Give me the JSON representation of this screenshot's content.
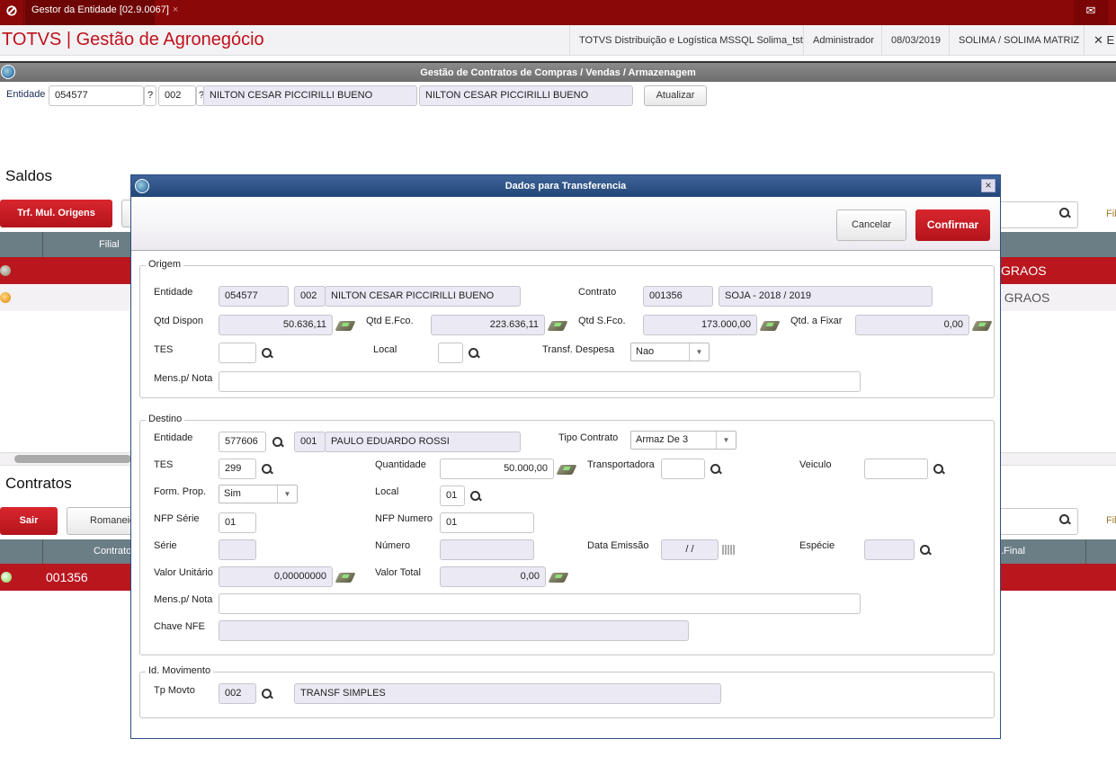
{
  "topbar": {
    "tab_label": "Gestor da Entidade [02.9.0067]",
    "tab_close": "×",
    "logo": "totvs-logo",
    "mail_icon": "mail-icon"
  },
  "header": {
    "app_title": "TOTVS | Gestão de Agronegócio",
    "environment": "TOTVS Distribuição e Logística MSSQL Solima_tst",
    "user": "Administrador",
    "date": "08/03/2019",
    "company": "SOLIMA / SOLIMA MATRIZ",
    "exit_label": "✕ E"
  },
  "window": {
    "title": "Gestão de Contratos de Compras / Vendas / Armazenagem"
  },
  "entity": {
    "label": "Entidade",
    "code": "054577",
    "q1": "?",
    "store": "002",
    "q2": "?",
    "name": "NILTON CESAR PICCIRILLI BUENO",
    "name2": "NILTON CESAR PICCIRILLI BUENO",
    "refresh": "Atualizar"
  },
  "saldos": {
    "title": "Saldos",
    "button": "Trf. Mul. Origens",
    "col_filial": "Filial",
    "rows": [
      {
        "text": "GRAOS"
      },
      {
        "text": "I GRAOS"
      }
    ],
    "filter": "Filt"
  },
  "contratos": {
    "title": "Contratos",
    "exit": "Sair",
    "romaneio": "Romaneio",
    "col_contrato": "Contrato",
    "col_final": ".Final",
    "rows": [
      {
        "contrato": "001356"
      }
    ],
    "filter": "Filt"
  },
  "dialog": {
    "title": "Dados para Transferencia",
    "close": "×",
    "cancel": "Cancelar",
    "confirm": "Confirmar",
    "origem": {
      "legend": "Origem",
      "entidade_label": "Entidade",
      "entidade": "054577",
      "loja": "002",
      "nome": "NILTON CESAR PICCIRILLI BUENO",
      "contrato_label": "Contrato",
      "contrato": "001356",
      "contrato_desc": "SOJA  - 2018 / 2019",
      "qtd_dispon_label": "Qtd Dispon",
      "qtd_dispon": "50.636,11",
      "qtd_efco_label": "Qtd E.Fco.",
      "qtd_efco": "223.636,11",
      "qtd_sfco_label": "Qtd S.Fco.",
      "qtd_sfco": "173.000,00",
      "qtd_fixar_label": "Qtd. a Fixar",
      "qtd_fixar": "0,00",
      "tes_label": "TES",
      "tes": "",
      "local_label": "Local",
      "local": "",
      "transf_label": "Transf. Despesa",
      "transf": "Nao",
      "mens_label": "Mens.p/ Nota",
      "mens": ""
    },
    "destino": {
      "legend": "Destino",
      "entidade_label": "Entidade",
      "entidade": "577606",
      "loja": "001",
      "nome": "PAULO EDUARDO ROSSI",
      "tipo_label": "Tipo Contrato",
      "tipo": "Armaz De 3",
      "tes_label": "TES",
      "tes": "299",
      "qtd_label": "Quantidade",
      "qtd": "50.000,00",
      "transp_label": "Transportadora",
      "transp": "",
      "veic_label": "Veiculo",
      "veic": "",
      "form_label": "Form. Prop.",
      "form": "Sim",
      "local_label": "Local",
      "local": "01",
      "nfps_label": "NFP Série",
      "nfps": "01",
      "nfpn_label": "NFP Numero",
      "nfpn": "01",
      "serie_label": "Série",
      "serie": "",
      "numero_label": "Número",
      "numero": "",
      "data_label": "Data Emissão",
      "data": " /  /",
      "especie_label": "Espécie",
      "especie": "",
      "vu_label": "Valor Unitário",
      "vu": "0,00000000",
      "vt_label": "Valor Total",
      "vt": "0,00",
      "mens_label": "Mens.p/ Nota",
      "mens": "",
      "chave_label": "Chave NFE",
      "chave": ""
    },
    "movimento": {
      "legend": "Id. Movimento",
      "tp_label": "Tp Movto",
      "tp": "002",
      "tp_desc": "TRANSF SIMPLES"
    }
  },
  "colors": {
    "brand_red": "#8b0808",
    "accent_red": "#c1111b",
    "grid_header": "#6b7d85",
    "dialog_title": "#2c4f80"
  }
}
